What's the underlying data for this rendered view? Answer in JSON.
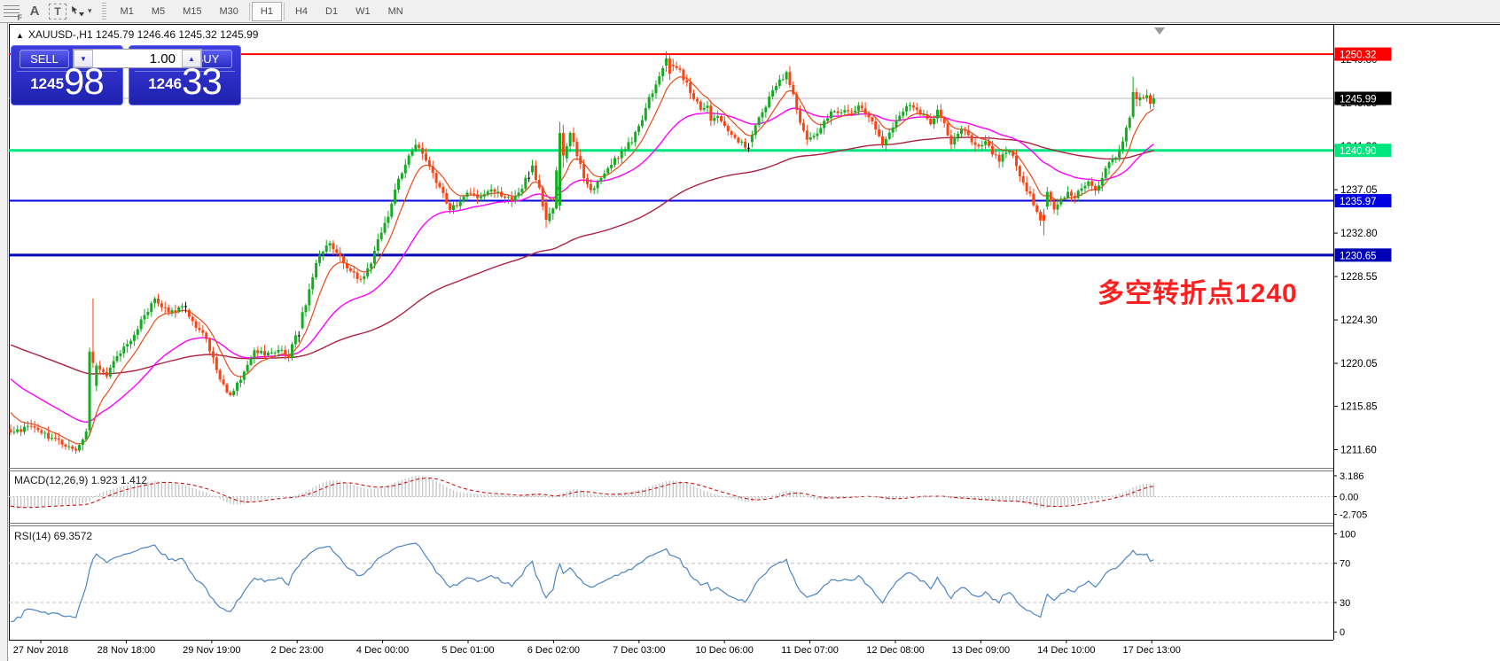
{
  "toolbar": {
    "tools": [
      {
        "name": "fibonacci-retracement-icon",
        "glyph": "F"
      },
      {
        "name": "text-label-icon",
        "glyph": "A"
      },
      {
        "name": "text-box-icon",
        "glyph": "T"
      },
      {
        "name": "arrows-tool-icon",
        "glyph": ""
      },
      {
        "name": "dropdown-caret-icon",
        "glyph": "▾"
      }
    ],
    "timeframes": [
      {
        "label": "M1",
        "active": false
      },
      {
        "label": "M5",
        "active": false
      },
      {
        "label": "M15",
        "active": false
      },
      {
        "label": "M30",
        "active": false
      },
      {
        "label": "H1",
        "active": true
      },
      {
        "label": "H4",
        "active": false
      },
      {
        "label": "D1",
        "active": false
      },
      {
        "label": "W1",
        "active": false
      },
      {
        "label": "MN",
        "active": false
      }
    ]
  },
  "chart_header": {
    "collapse_arrow": "▲",
    "title": "XAUUSD-,H1  1245.79 1246.46 1245.32 1245.99"
  },
  "trade_panel": {
    "sell_label": "SELL",
    "buy_label": "BUY",
    "volume_value": "1.00",
    "spin_down": "▼",
    "spin_up": "▲",
    "sell_price_small": "1245",
    "sell_price_big": "98",
    "buy_price_small": "1246",
    "buy_price_big": "33"
  },
  "annotation": {
    "text": "多空转折点1240",
    "color": "#fe2020"
  },
  "chart_data": {
    "type": "candlestick",
    "symbol": "XAUUSD-",
    "timeframe": "H1",
    "current_price": 1245.99,
    "price_ticks": [
      "1249.80",
      "1245.55",
      "1241.30",
      "1237.05",
      "1232.80",
      "1228.55",
      "1224.30",
      "1220.05",
      "1215.85",
      "1211.60"
    ],
    "time_ticks": [
      "27 Nov 2018",
      "28 Nov 18:00",
      "29 Nov 19:00",
      "2 Dec 23:00",
      "4 Dec 00:00",
      "5 Dec 01:00",
      "6 Dec 02:00",
      "7 Dec 03:00",
      "10 Dec 06:00",
      "11 Dec 07:00",
      "12 Dec 08:00",
      "13 Dec 09:00",
      "14 Dec 10:00",
      "17 Dec 13:00"
    ],
    "hlines": [
      {
        "price": 1250.32,
        "label": "1250.32",
        "color": "#ff0000",
        "width": 2
      },
      {
        "price": 1240.9,
        "label": "1240.90",
        "color": "#00e67e",
        "width": 3
      },
      {
        "price": 1235.97,
        "label": "1235.97",
        "color": "#0000e0",
        "width": 2
      },
      {
        "price": 1230.65,
        "label": "1230.65",
        "color": "#0000b4",
        "width": 3
      }
    ],
    "current_price_line": {
      "label": "1245.99",
      "line_color": "#b8b8b8",
      "badge_color": "#000000"
    },
    "colors": {
      "up": "#17ab25",
      "down": "#ff4212",
      "doji": "#000000",
      "ma_fast": "#e94a18",
      "ma_mid": "#ff00ff",
      "ma_slow": "#ad2143",
      "macd_hist": "#c8c8c8",
      "macd_signal": "#cc1111",
      "rsi_line": "#4a84c4",
      "level_dash": "#c0c0c0"
    },
    "moving_averages": [
      {
        "name": "fast",
        "period": 9
      },
      {
        "name": "mid",
        "period": 34
      },
      {
        "name": "slow",
        "period": 120
      }
    ],
    "close_anchors": [
      [
        0,
        1213.4
      ],
      [
        7,
        1213.9
      ],
      [
        12,
        1212.7
      ],
      [
        19,
        1211.6
      ],
      [
        22,
        1213.2
      ],
      [
        25,
        1220.0
      ],
      [
        28,
        1218.7
      ],
      [
        31,
        1220.9
      ],
      [
        36,
        1222.9
      ],
      [
        40,
        1225.3
      ],
      [
        42,
        1226.4
      ],
      [
        46,
        1225.1
      ],
      [
        50,
        1225.5
      ],
      [
        53,
        1224.1
      ],
      [
        57,
        1222.4
      ],
      [
        61,
        1218.4
      ],
      [
        64,
        1216.7
      ],
      [
        67,
        1218.6
      ],
      [
        71,
        1221.2
      ],
      [
        74,
        1220.9
      ],
      [
        78,
        1221.4
      ],
      [
        81,
        1220.8
      ],
      [
        83,
        1222.6
      ],
      [
        86,
        1226.0
      ],
      [
        88,
        1228.6
      ],
      [
        90,
        1230.9
      ],
      [
        93,
        1231.8
      ],
      [
        96,
        1230.4
      ],
      [
        99,
        1229.2
      ],
      [
        102,
        1228.1
      ],
      [
        105,
        1230.0
      ],
      [
        107,
        1232.2
      ],
      [
        110,
        1234.6
      ],
      [
        112,
        1236.8
      ],
      [
        114,
        1238.9
      ],
      [
        116,
        1240.3
      ],
      [
        118,
        1241.2
      ],
      [
        120,
        1240.6
      ],
      [
        122,
        1239.3
      ],
      [
        124,
        1237.9
      ],
      [
        126,
        1236.5
      ],
      [
        128,
        1235.3
      ],
      [
        131,
        1235.9
      ],
      [
        134,
        1236.8
      ],
      [
        137,
        1236.2
      ],
      [
        140,
        1237.1
      ],
      [
        143,
        1236.5
      ],
      [
        146,
        1236.0
      ],
      [
        149,
        1237.4
      ],
      [
        152,
        1239.4
      ],
      [
        154,
        1237.0
      ],
      [
        156,
        1234.1
      ],
      [
        158,
        1235.0
      ],
      [
        160,
        1242.6
      ],
      [
        161,
        1240.4
      ],
      [
        163,
        1242.4
      ],
      [
        165,
        1240.6
      ],
      [
        167,
        1238.2
      ],
      [
        169,
        1236.9
      ],
      [
        172,
        1238.0
      ],
      [
        175,
        1239.6
      ],
      [
        178,
        1240.8
      ],
      [
        181,
        1241.9
      ],
      [
        184,
        1243.8
      ],
      [
        186,
        1245.9
      ],
      [
        188,
        1247.6
      ],
      [
        190,
        1249.0
      ],
      [
        191,
        1249.9
      ],
      [
        193,
        1248.9
      ],
      [
        195,
        1248.6
      ],
      [
        197,
        1247.3
      ],
      [
        199,
        1246.0
      ],
      [
        201,
        1244.9
      ],
      [
        203,
        1245.4
      ],
      [
        204,
        1243.9
      ],
      [
        206,
        1244.5
      ],
      [
        208,
        1243.2
      ],
      [
        210,
        1242.6
      ],
      [
        212,
        1241.6
      ],
      [
        214,
        1241.4
      ],
      [
        216,
        1242.3
      ],
      [
        218,
        1243.9
      ],
      [
        220,
        1245.1
      ],
      [
        222,
        1246.8
      ],
      [
        224,
        1247.9
      ],
      [
        226,
        1248.3
      ],
      [
        228,
        1246.4
      ],
      [
        229,
        1244.6
      ],
      [
        231,
        1243.0
      ],
      [
        232,
        1241.9
      ],
      [
        235,
        1242.6
      ],
      [
        237,
        1243.7
      ],
      [
        239,
        1244.9
      ],
      [
        241,
        1244.3
      ],
      [
        243,
        1245.0
      ],
      [
        245,
        1244.6
      ],
      [
        247,
        1245.3
      ],
      [
        249,
        1244.4
      ],
      [
        251,
        1243.9
      ],
      [
        253,
        1242.4
      ],
      [
        254,
        1241.5
      ],
      [
        256,
        1242.9
      ],
      [
        258,
        1243.7
      ],
      [
        260,
        1244.6
      ],
      [
        262,
        1245.4
      ],
      [
        264,
        1244.9
      ],
      [
        266,
        1244.3
      ],
      [
        268,
        1243.7
      ],
      [
        270,
        1244.7
      ],
      [
        272,
        1243.3
      ],
      [
        274,
        1241.6
      ],
      [
        276,
        1242.4
      ],
      [
        278,
        1242.9
      ],
      [
        280,
        1241.9
      ],
      [
        282,
        1241.4
      ],
      [
        284,
        1241.6
      ],
      [
        286,
        1240.7
      ],
      [
        288,
        1239.9
      ],
      [
        291,
        1241.0
      ],
      [
        293,
        1239.5
      ],
      [
        295,
        1237.6
      ],
      [
        297,
        1236.5
      ],
      [
        299,
        1234.8
      ],
      [
        300,
        1234.3
      ],
      [
        302,
        1236.9
      ],
      [
        304,
        1235.1
      ],
      [
        306,
        1235.9
      ],
      [
        308,
        1236.7
      ],
      [
        310,
        1236.3
      ],
      [
        312,
        1237.1
      ],
      [
        314,
        1237.7
      ],
      [
        316,
        1236.9
      ],
      [
        318,
        1238.3
      ],
      [
        320,
        1239.5
      ],
      [
        322,
        1240.4
      ],
      [
        324,
        1241.5
      ],
      [
        326,
        1244.2
      ],
      [
        327,
        1246.6
      ],
      [
        328,
        1245.9
      ],
      [
        330,
        1245.9
      ],
      [
        331,
        1246.4
      ],
      [
        332,
        1245.7
      ],
      [
        333,
        1245.99
      ]
    ],
    "bar_events": [
      {
        "bar": 23,
        "o": 1213.5,
        "h": 1221.6,
        "l": 1212.9,
        "c": 1221.2
      },
      {
        "bar": 24,
        "o": 1221.2,
        "h": 1226.4,
        "l": 1219.6,
        "c": 1220.1
      },
      {
        "bar": 156,
        "o": 1235.8,
        "h": 1236.2,
        "l": 1233.3,
        "c": 1234.1
      },
      {
        "bar": 160,
        "o": 1235.5,
        "h": 1243.7,
        "l": 1235.0,
        "c": 1242.6
      },
      {
        "bar": 161,
        "o": 1242.6,
        "h": 1243.4,
        "l": 1239.2,
        "c": 1240.4
      },
      {
        "bar": 191,
        "o": 1249.2,
        "h": 1250.6,
        "l": 1248.6,
        "c": 1249.9
      },
      {
        "bar": 192,
        "o": 1249.9,
        "h": 1250.2,
        "l": 1247.8,
        "c": 1248.4
      },
      {
        "bar": 301,
        "o": 1234.6,
        "h": 1235.2,
        "l": 1232.6,
        "c": 1234.0
      },
      {
        "bar": 327,
        "o": 1244.2,
        "h": 1248.1,
        "l": 1244.0,
        "c": 1246.6
      },
      {
        "bar": 328,
        "o": 1246.6,
        "h": 1247.0,
        "l": 1245.2,
        "c": 1245.9
      }
    ],
    "doji_bars": [
      51,
      84,
      151,
      215
    ]
  },
  "macd_panel": {
    "label": "MACD(12,26,9) 1.923 1.412",
    "params": {
      "fast": 12,
      "slow": 26,
      "signal": 9
    },
    "current_macd": 1.923,
    "current_signal": 1.412,
    "axis_ticks": [
      {
        "value": 3.186,
        "label": "3.186"
      },
      {
        "value": 0,
        "label": "0.00"
      },
      {
        "value": -2.705,
        "label": "-2.705"
      }
    ]
  },
  "rsi_panel": {
    "label": "RSI(14) 69.3572",
    "period": 14,
    "current_value": 69.3572,
    "axis_ticks": [
      {
        "value": 100,
        "label": "100"
      },
      {
        "value": 70,
        "label": "70"
      },
      {
        "value": 30,
        "label": "30"
      },
      {
        "value": 0,
        "label": "0"
      }
    ],
    "levels": [
      70,
      30
    ]
  }
}
